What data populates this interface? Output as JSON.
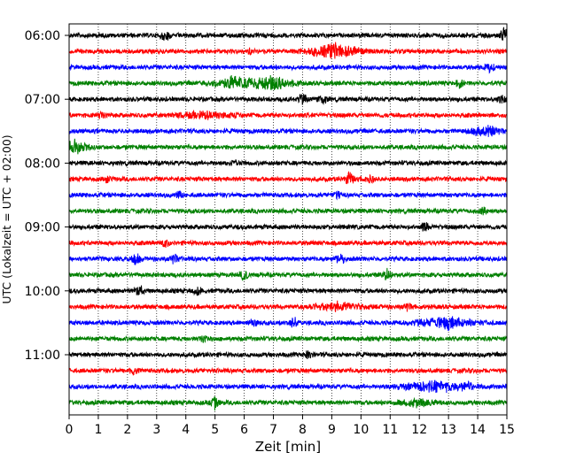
{
  "chart_data": {
    "type": "line",
    "subtype": "helicorder",
    "title": "",
    "xlabel": "Zeit  [min]",
    "ylabel": "UTC (Lokalzeit = UTC + 02:00)",
    "xlim": [
      0,
      15
    ],
    "x_ticks": [
      0,
      1,
      2,
      3,
      4,
      5,
      6,
      7,
      8,
      9,
      10,
      11,
      12,
      13,
      14,
      15
    ],
    "y_hour_labels": [
      "06:00",
      "07:00",
      "08:00",
      "09:00",
      "10:00",
      "11:00"
    ],
    "traces_per_hour": 4,
    "trace_count": 24,
    "trace_colors": [
      "#000000",
      "#ff0000",
      "#0000ff",
      "#008000"
    ],
    "vertical_grid": "dotted",
    "legend": "none",
    "events": [
      {
        "trace": 0,
        "t": 3.3,
        "amp": 1.0
      },
      {
        "trace": 0,
        "t": 14.9,
        "amp": 1.0
      },
      {
        "trace": 1,
        "t": 9.1,
        "amp": 1.0,
        "duration": 1.5
      },
      {
        "trace": 1,
        "t": 6.2,
        "amp": 0.3
      },
      {
        "trace": 2,
        "t": 14.4,
        "amp": 0.7
      },
      {
        "trace": 3,
        "t": 5.7,
        "amp": 1.0,
        "duration": 1.2
      },
      {
        "trace": 3,
        "t": 7.0,
        "amp": 1.0,
        "duration": 1.1
      },
      {
        "trace": 3,
        "t": 13.4,
        "amp": 0.6
      },
      {
        "trace": 4,
        "t": 8.0,
        "amp": 0.8
      },
      {
        "trace": 4,
        "t": 8.7,
        "amp": 0.6
      },
      {
        "trace": 4,
        "t": 14.8,
        "amp": 0.6
      },
      {
        "trace": 5,
        "t": 4.6,
        "amp": 0.5,
        "duration": 1.5
      },
      {
        "trace": 5,
        "t": 1.1,
        "amp": 0.4
      },
      {
        "trace": 6,
        "t": 14.3,
        "amp": 0.9,
        "duration": 0.8
      },
      {
        "trace": 7,
        "t": 0.2,
        "amp": 0.9,
        "duration": 0.8
      },
      {
        "trace": 8,
        "t": 5.7,
        "amp": 0.6
      },
      {
        "trace": 9,
        "t": 9.6,
        "amp": 1.0
      },
      {
        "trace": 9,
        "t": 1.3,
        "amp": 0.5
      },
      {
        "trace": 9,
        "t": 10.3,
        "amp": 0.6
      },
      {
        "trace": 10,
        "t": 3.8,
        "amp": 0.5
      },
      {
        "trace": 10,
        "t": 9.2,
        "amp": 0.5
      },
      {
        "trace": 11,
        "t": 14.2,
        "amp": 0.6
      },
      {
        "trace": 12,
        "t": 12.2,
        "amp": 0.6
      },
      {
        "trace": 13,
        "t": 3.3,
        "amp": 0.5
      },
      {
        "trace": 14,
        "t": 2.3,
        "amp": 0.8
      },
      {
        "trace": 14,
        "t": 3.6,
        "amp": 0.8
      },
      {
        "trace": 14,
        "t": 9.3,
        "amp": 0.8
      },
      {
        "trace": 15,
        "t": 6.0,
        "amp": 0.7
      },
      {
        "trace": 15,
        "t": 10.9,
        "amp": 0.8
      },
      {
        "trace": 16,
        "t": 2.4,
        "amp": 0.9
      },
      {
        "trace": 16,
        "t": 4.4,
        "amp": 0.6
      },
      {
        "trace": 17,
        "t": 9.2,
        "amp": 0.6,
        "duration": 1.5
      },
      {
        "trace": 17,
        "t": 11.6,
        "amp": 0.6
      },
      {
        "trace": 18,
        "t": 6.3,
        "amp": 0.7
      },
      {
        "trace": 18,
        "t": 7.7,
        "amp": 0.8
      },
      {
        "trace": 18,
        "t": 12.9,
        "amp": 0.8,
        "duration": 1.6
      },
      {
        "trace": 19,
        "t": 4.6,
        "amp": 0.4
      },
      {
        "trace": 20,
        "t": 8.2,
        "amp": 0.5
      },
      {
        "trace": 21,
        "t": 2.2,
        "amp": 0.4
      },
      {
        "trace": 22,
        "t": 12.5,
        "amp": 0.7,
        "duration": 2.0
      },
      {
        "trace": 22,
        "t": 13.6,
        "amp": 0.7
      },
      {
        "trace": 23,
        "t": 5.0,
        "amp": 0.8
      },
      {
        "trace": 23,
        "t": 11.9,
        "amp": 0.5,
        "duration": 1.0
      }
    ]
  }
}
